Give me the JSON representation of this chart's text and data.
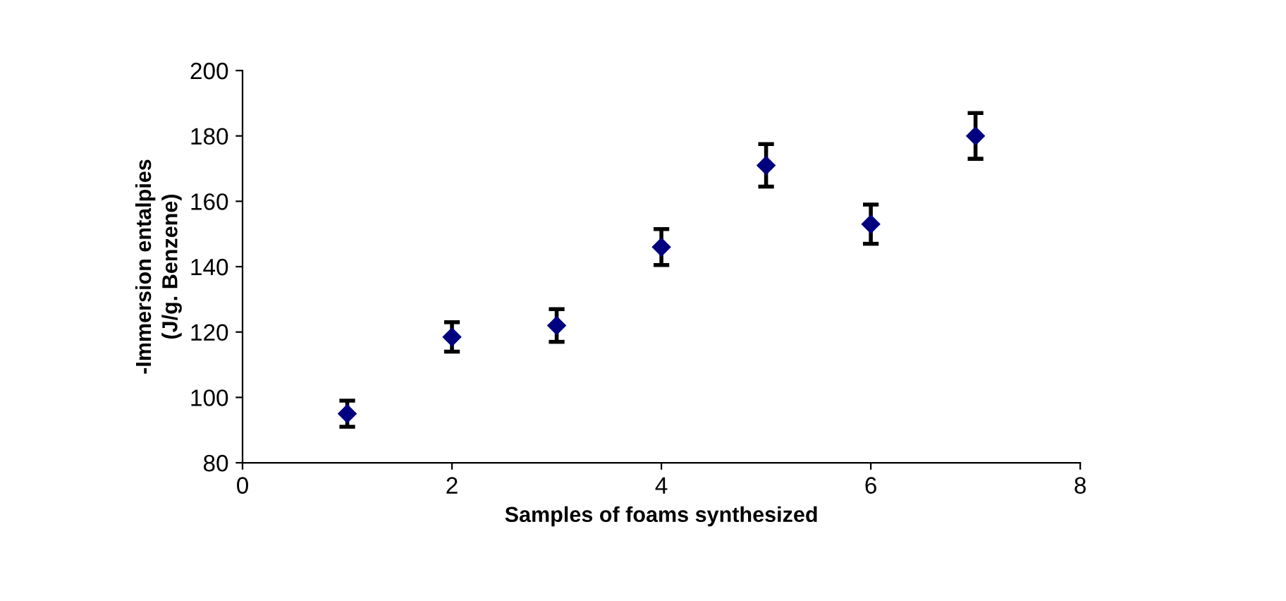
{
  "chart_data": {
    "type": "scatter",
    "xlabel": "Samples of foams synthesized",
    "ylabel": "-Immersion entalpies\n(J/g. Benzene)",
    "x": [
      1,
      2,
      3,
      4,
      5,
      6,
      7
    ],
    "series": [
      {
        "color": "#000080",
        "values": [
          95,
          118.5,
          122,
          146,
          171,
          153,
          180
        ],
        "errors": [
          4,
          4.5,
          5,
          5.5,
          6.5,
          6,
          7
        ]
      }
    ],
    "xlim": [
      0,
      8
    ],
    "xticks": [
      0,
      2,
      4,
      6,
      8
    ],
    "ylim": [
      80,
      200
    ],
    "yticks": [
      80,
      100,
      120,
      140,
      160,
      180,
      200
    ],
    "marker": "diamond",
    "grid": false,
    "legend": false
  }
}
